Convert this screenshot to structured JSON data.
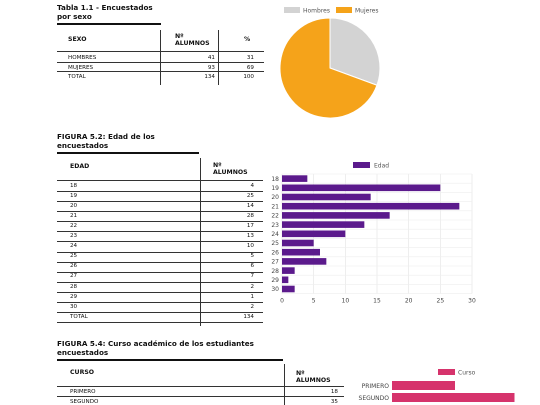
{
  "table1": {
    "title_l1": "Tabla 1.1 - Encuestados",
    "title_l2": "por sexo",
    "headers": {
      "col1": "SEXO",
      "col2a": "Nº",
      "col2b": "ALUMNOS",
      "col3": "%"
    },
    "rows": [
      {
        "label": "HOMBRES",
        "count": "41",
        "pct": "31"
      },
      {
        "label": "MUJERES",
        "count": "93",
        "pct": "69"
      },
      {
        "label": "TOTAL",
        "count": "134",
        "pct": "100"
      }
    ]
  },
  "table2": {
    "title_l1": "FIGURA 5.2: Edad de los",
    "title_l2": "encuestados",
    "headers": {
      "col1": "EDAD",
      "col2a": "Nº",
      "col2b": "ALUMNOS"
    },
    "rows": [
      {
        "label": "18",
        "count": "4"
      },
      {
        "label": "19",
        "count": "25"
      },
      {
        "label": "20",
        "count": "14"
      },
      {
        "label": "21",
        "count": "28"
      },
      {
        "label": "22",
        "count": "17"
      },
      {
        "label": "23",
        "count": "13"
      },
      {
        "label": "24",
        "count": "10"
      },
      {
        "label": "25",
        "count": "5"
      },
      {
        "label": "26",
        "count": "6"
      },
      {
        "label": "27",
        "count": "7"
      },
      {
        "label": "28",
        "count": "2"
      },
      {
        "label": "29",
        "count": "1"
      },
      {
        "label": "30",
        "count": "2"
      },
      {
        "label": "TOTAL",
        "count": "134"
      }
    ]
  },
  "table3": {
    "title_l1": "FIGURA 5.4: Curso académico de los estudiantes",
    "title_l2": "encuestados",
    "headers": {
      "col1": "CURSO",
      "col2a": "Nº",
      "col2b": "ALUMNOS"
    },
    "rows": [
      {
        "label": "PRIMERO",
        "count": "18"
      },
      {
        "label": "SEGUNDO",
        "count": "35"
      }
    ]
  },
  "chart_data": [
    {
      "type": "pie",
      "labels": [
        "Hombres",
        "Mujeres"
      ],
      "values": [
        41,
        93
      ],
      "colors": [
        "#d3d3d3",
        "#f5a31a"
      ],
      "legend": "top"
    },
    {
      "type": "bar",
      "orientation": "horizontal",
      "categories": [
        "18",
        "19",
        "20",
        "21",
        "22",
        "23",
        "24",
        "25",
        "26",
        "27",
        "28",
        "29",
        "30"
      ],
      "series": [
        {
          "name": "Edad",
          "values": [
            4,
            25,
            14,
            28,
            17,
            13,
            10,
            5,
            6,
            7,
            2,
            1,
            2
          ]
        }
      ],
      "xlim": [
        0,
        30
      ],
      "xticks": [
        0,
        5,
        10,
        15,
        20,
        25,
        30
      ],
      "color": "#5b1a8c",
      "grid": true,
      "legend": "top"
    },
    {
      "type": "bar",
      "orientation": "horizontal",
      "categories": [
        "PRIMERO",
        "SEGUNDO"
      ],
      "series": [
        {
          "name": "Curso",
          "values": [
            18,
            35
          ]
        }
      ],
      "xlim": [
        0,
        40
      ],
      "color": "#d6336c",
      "legend": "top"
    }
  ]
}
